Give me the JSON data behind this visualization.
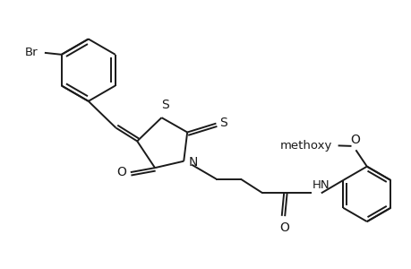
{
  "bg_color": "#ffffff",
  "line_color": "#1a1a1a",
  "line_width": 1.4,
  "font_size": 9.5,
  "fig_width": 4.6,
  "fig_height": 3.0,
  "dpi": 100,
  "xlim": [
    0,
    9.2
  ],
  "ylim": [
    0,
    6.0
  ]
}
